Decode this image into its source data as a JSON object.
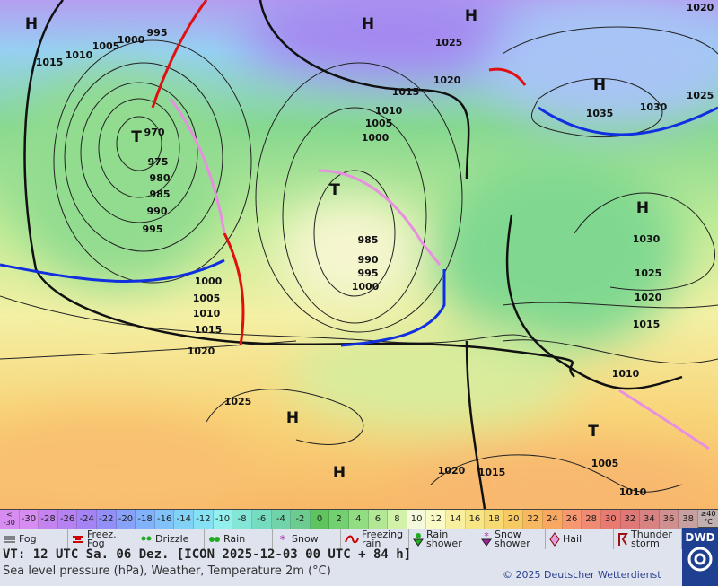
{
  "isobar_labels": [
    995,
    1000,
    1005,
    1010,
    1015,
    970,
    975,
    980,
    985,
    990,
    995,
    1000,
    1005,
    1010,
    1015,
    1020,
    1025,
    1025,
    1020,
    1015,
    1010,
    1005,
    1000,
    985,
    990,
    995,
    1000,
    1035,
    1030,
    1025,
    1020,
    1030,
    1025,
    1020,
    1015,
    1010,
    1005,
    1020,
    1015,
    1010
  ],
  "pressure_systems": [
    "H",
    "H",
    "H",
    "H",
    "H",
    "H",
    "H",
    "T",
    "T",
    "T"
  ],
  "temperature_scale": {
    "low_label": "< -30",
    "values": [
      -30,
      -28,
      -26,
      -24,
      -22,
      -20,
      -18,
      -16,
      -14,
      -12,
      -10,
      -8,
      -6,
      -4,
      -2,
      0,
      2,
      4,
      6,
      8,
      10,
      12,
      14,
      16,
      18,
      20,
      22,
      24,
      26,
      28,
      30,
      32,
      34,
      36,
      38
    ],
    "colors": [
      "#d68cf0",
      "#c583f0",
      "#b682f2",
      "#a484f5",
      "#9290f8",
      "#88a2fa",
      "#82b2fa",
      "#82c2fa",
      "#82d2f8",
      "#84e2f4",
      "#94f0ee",
      "#84e6d6",
      "#74dcc0",
      "#70d4a8",
      "#6ccc90",
      "#5ec45e",
      "#72d070",
      "#92dc82",
      "#b2e894",
      "#d2f2aa",
      "#f6fadc",
      "#fbfbc8",
      "#f8f0a0",
      "#f8e684",
      "#f8da72",
      "#f8ca62",
      "#f8b860",
      "#f8a860",
      "#f89870",
      "#f08a72",
      "#e87a72",
      "#e07878",
      "#d88282",
      "#d09090",
      "#c8a0a0"
    ],
    "high_label": "≥40 °C"
  },
  "legend": [
    "Fog",
    "Freez. Fog",
    "Drizzle",
    "Rain",
    "Snow",
    "Freezing rain",
    "Rain shower",
    "Snow shower",
    "Hail",
    "Thunder storm"
  ],
  "footer": {
    "valid_time": "VT: 12 UTC Sa.   06 Dez. [ICON 2025-12-03  00 UTC + 84 h]",
    "description": "Sea level pressure (hPa), Weather, Temperature 2m (°C)",
    "copyright": "© 2025 Deutscher Wetterdienst",
    "logo": "DWD"
  }
}
